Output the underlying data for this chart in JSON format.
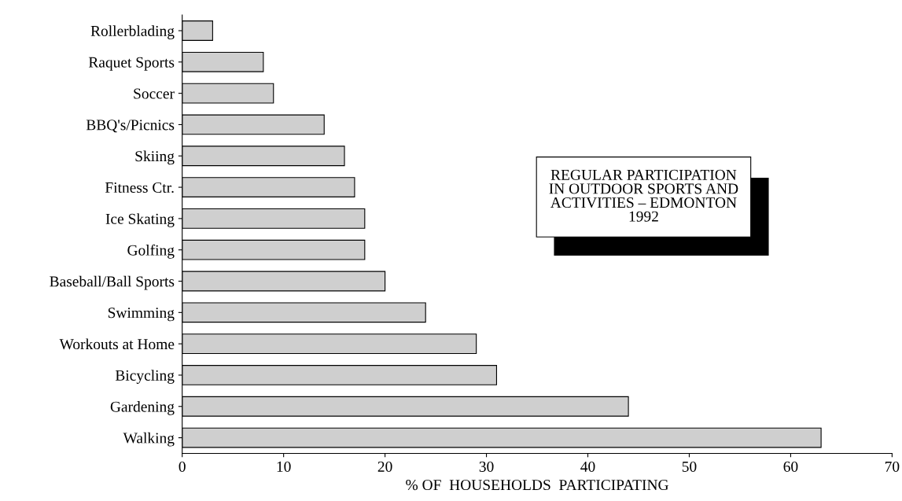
{
  "chart_data": {
    "type": "bar",
    "orientation": "horizontal",
    "title": "REGULAR PARTICIPATION\nIN OUTDOOR SPORTS AND\nACTIVITIES – EDMONTON\n1992",
    "xlabel": "% OF  HOUSEHOLDS  PARTICIPATING",
    "categories": [
      "Rollerblading",
      "Raquet Sports",
      "Soccer",
      "BBQ's/Picnics",
      "Skiing",
      "Fitness Ctr.",
      "Ice Skating",
      "Golfing",
      "Baseball/Ball Sports",
      "Swimming",
      "Workouts at Home",
      "Bicycling",
      "Gardening",
      "Walking"
    ],
    "values": [
      3,
      8,
      9,
      14,
      16,
      17,
      18,
      18,
      20,
      24,
      29,
      31,
      44,
      63
    ],
    "color": "#cfcfcf",
    "xlim": [
      0,
      70
    ],
    "xticks": [
      0,
      10,
      20,
      30,
      40,
      50,
      60,
      70
    ],
    "grid": false,
    "legend": false
  }
}
